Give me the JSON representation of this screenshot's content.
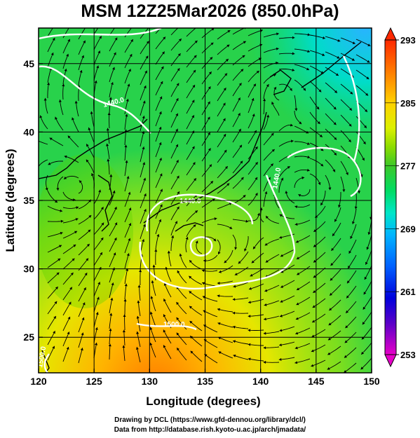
{
  "title": "MSM 12Z25Mar2026 (850.0hPa)",
  "xlabel": "Longitude (degrees)",
  "ylabel": "Latitude  (degrees)",
  "x_ticks": [
    "120",
    "125",
    "130",
    "135",
    "140",
    "145",
    "150"
  ],
  "y_ticks": [
    "25",
    "30",
    "35",
    "40",
    "45"
  ],
  "x_range": [
    120,
    150
  ],
  "y_range": [
    22.4,
    47.6
  ],
  "colorbar": {
    "ticks": [
      "293",
      "285",
      "277",
      "269",
      "261",
      "253"
    ],
    "min": 253,
    "max": 293,
    "colors": [
      "#e600c8",
      "#5a00c8",
      "#0000dc",
      "#0050ff",
      "#00a0ff",
      "#00d2ff",
      "#00e6b4",
      "#00dc64",
      "#28c828",
      "#5ad200",
      "#a0e600",
      "#e6f000",
      "#ffd200",
      "#ffa000",
      "#ff6e00",
      "#ff3c00",
      "#e61e1e"
    ]
  },
  "contour_labels": [
    "1440.0",
    "1440.0",
    "1440.0",
    "1500.0",
    "1500.0"
  ],
  "credits": [
    "Drawing by DCL (https://www.gfd-dennou.org/library/dcl/)",
    "Data from http://database.rish.kyoto-u.ac.jp/arch/jmadata/"
  ]
}
